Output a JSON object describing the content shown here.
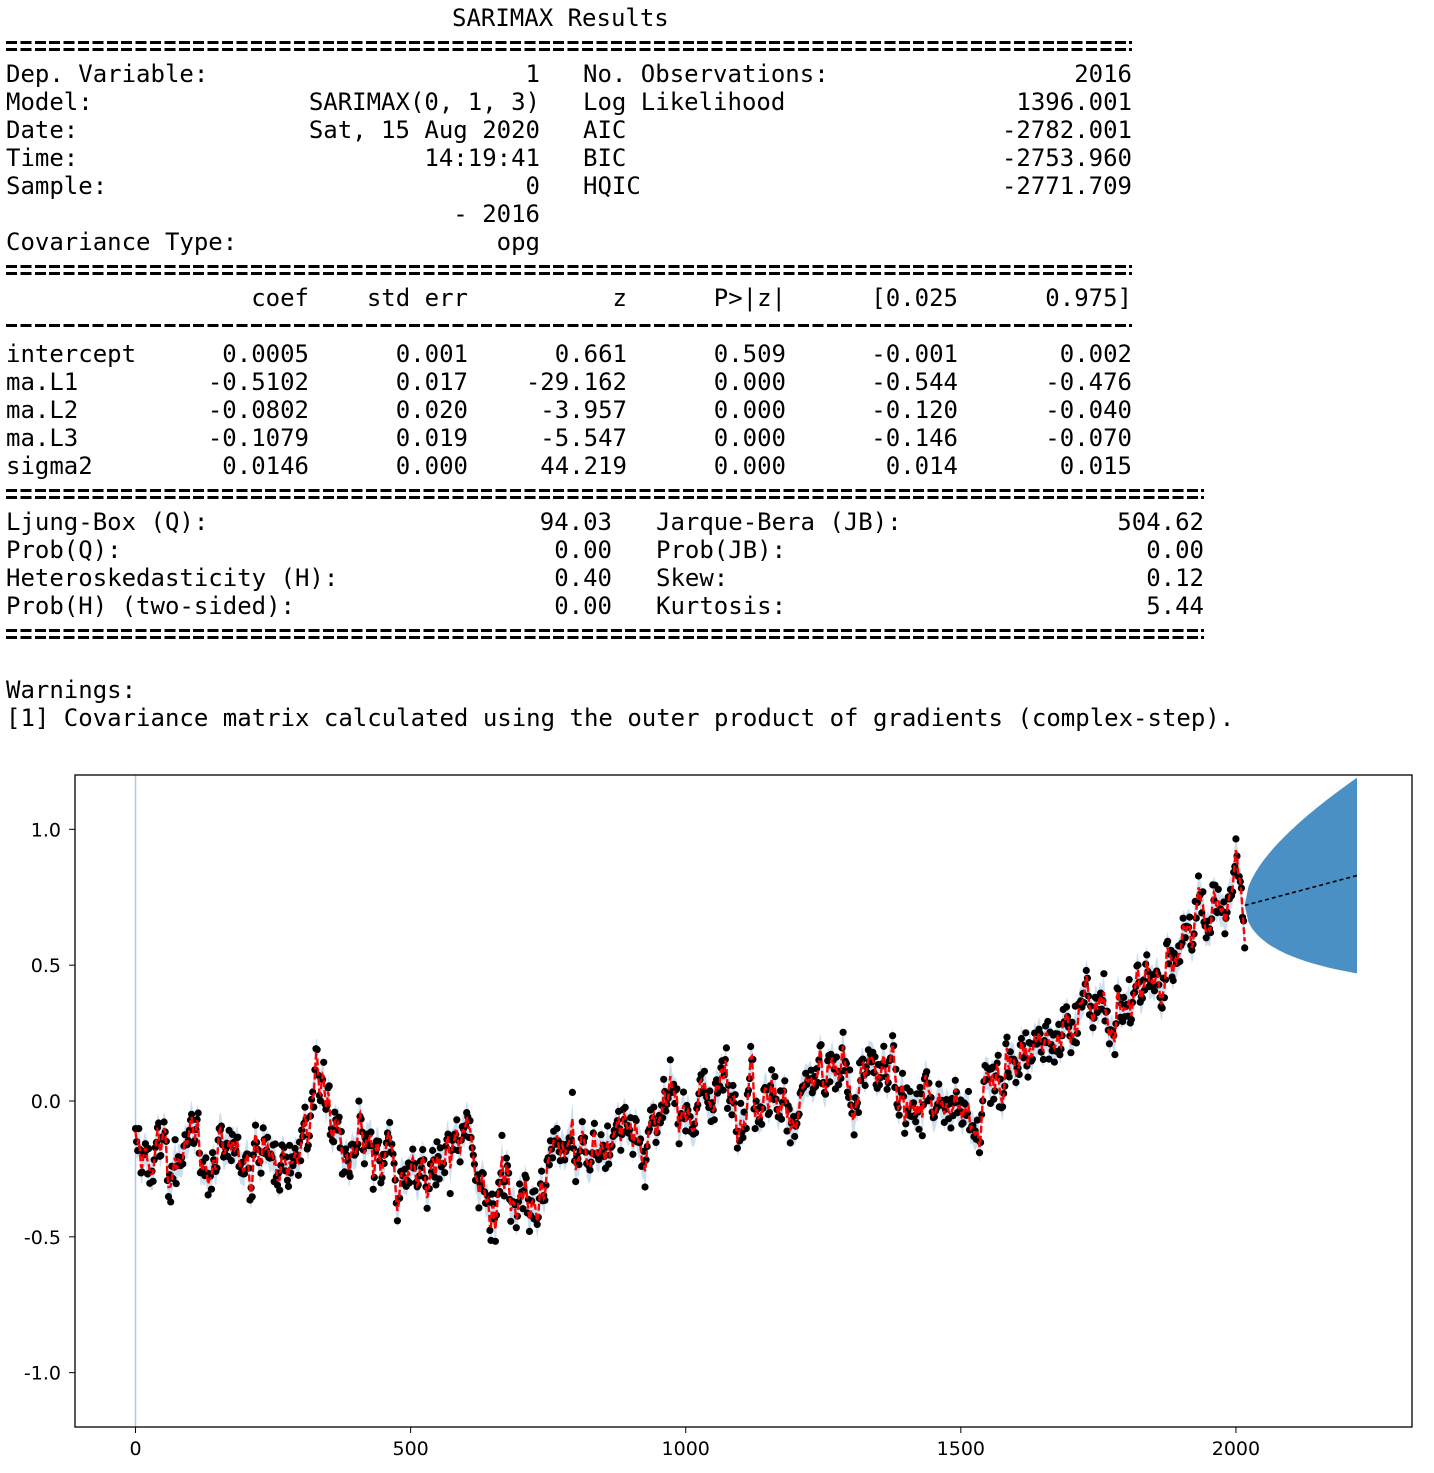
{
  "summary": {
    "title": "SARIMAX Results",
    "left_fields": [
      {
        "label": "Dep. Variable:",
        "value": "1"
      },
      {
        "label": "Model:",
        "value": "SARIMAX(0, 1, 3)"
      },
      {
        "label": "Date:",
        "value": "Sat, 15 Aug 2020"
      },
      {
        "label": "Time:",
        "value": "14:19:41"
      },
      {
        "label": "Sample:",
        "value": "0"
      },
      {
        "label": "",
        "value": "- 2016"
      },
      {
        "label": "Covariance Type:",
        "value": "opg"
      }
    ],
    "right_fields": [
      {
        "label": "No. Observations:",
        "value": "2016"
      },
      {
        "label": "Log Likelihood",
        "value": "1396.001"
      },
      {
        "label": "AIC",
        "value": "-2782.001"
      },
      {
        "label": "BIC",
        "value": "-2753.960"
      },
      {
        "label": "HQIC",
        "value": "-2771.709"
      }
    ],
    "coef_headers": [
      "coef",
      "std err",
      "z",
      "P>|z|",
      "[0.025",
      "0.975]"
    ],
    "coef_rows": [
      {
        "name": "intercept",
        "values": [
          "0.0005",
          "0.001",
          "0.661",
          "0.509",
          "-0.001",
          "0.002"
        ]
      },
      {
        "name": "ma.L1",
        "values": [
          "-0.5102",
          "0.017",
          "-29.162",
          "0.000",
          "-0.544",
          "-0.476"
        ]
      },
      {
        "name": "ma.L2",
        "values": [
          "-0.0802",
          "0.020",
          "-3.957",
          "0.000",
          "-0.120",
          "-0.040"
        ]
      },
      {
        "name": "ma.L3",
        "values": [
          "-0.1079",
          "0.019",
          "-5.547",
          "0.000",
          "-0.146",
          "-0.070"
        ]
      },
      {
        "name": "sigma2",
        "values": [
          "0.0146",
          "0.000",
          "44.219",
          "0.000",
          "0.014",
          "0.015"
        ]
      }
    ],
    "diag_left": [
      {
        "label": "Ljung-Box (Q):",
        "value": "94.03"
      },
      {
        "label": "Prob(Q):",
        "value": "0.00"
      },
      {
        "label": "Heteroskedasticity (H):",
        "value": "0.40"
      },
      {
        "label": "Prob(H) (two-sided):",
        "value": "0.00"
      }
    ],
    "diag_right": [
      {
        "label": "Jarque-Bera (JB):",
        "value": "504.62"
      },
      {
        "label": "Prob(JB):",
        "value": "0.00"
      },
      {
        "label": "Skew:",
        "value": "0.12"
      },
      {
        "label": "Kurtosis:",
        "value": "5.44"
      }
    ],
    "warnings_title": "Warnings:",
    "warnings": [
      "[1] Covariance matrix calculated using the outer product of gradients (complex-step)."
    ]
  },
  "chart_data": {
    "type": "scatter",
    "xlim": [
      -110,
      2320
    ],
    "ylim": [
      -1.2,
      1.2
    ],
    "x_ticks": [
      "0",
      "500",
      "1000",
      "1500",
      "2000"
    ],
    "x_tick_values": [
      0,
      500,
      1000,
      1500,
      2000
    ],
    "y_ticks": [
      "1.0",
      "0.5",
      "0.0",
      "-0.5",
      "-1.0"
    ],
    "y_tick_values": [
      1.0,
      0.5,
      0.0,
      -0.5,
      -1.0
    ],
    "grid": false,
    "colors": {
      "observed": "#000000",
      "fitted": "#ff0000",
      "forecast_band": "#4a90c4",
      "fit_band": "#a9c9e6",
      "forecast_line": "#000000"
    },
    "trend_anchors": [
      {
        "x": 0,
        "y": -0.2
      },
      {
        "x": 100,
        "y": -0.22
      },
      {
        "x": 200,
        "y": -0.18
      },
      {
        "x": 300,
        "y": -0.22
      },
      {
        "x": 330,
        "y": 0.1
      },
      {
        "x": 380,
        "y": -0.2
      },
      {
        "x": 500,
        "y": -0.3
      },
      {
        "x": 600,
        "y": -0.2
      },
      {
        "x": 700,
        "y": -0.38
      },
      {
        "x": 800,
        "y": -0.18
      },
      {
        "x": 900,
        "y": -0.12
      },
      {
        "x": 1000,
        "y": -0.05
      },
      {
        "x": 1100,
        "y": 0.1
      },
      {
        "x": 1200,
        "y": 0.0
      },
      {
        "x": 1300,
        "y": 0.12
      },
      {
        "x": 1400,
        "y": 0.05
      },
      {
        "x": 1500,
        "y": -0.08
      },
      {
        "x": 1600,
        "y": 0.15
      },
      {
        "x": 1700,
        "y": 0.3
      },
      {
        "x": 1800,
        "y": 0.38
      },
      {
        "x": 1900,
        "y": 0.6
      },
      {
        "x": 2000,
        "y": 0.78
      },
      {
        "x": 2016,
        "y": 0.72
      }
    ],
    "forecast": {
      "x": [
        2016,
        2220
      ],
      "mean": [
        0.72,
        0.83
      ],
      "upper": [
        0.8,
        1.19
      ],
      "lower": [
        0.66,
        0.47
      ]
    }
  }
}
